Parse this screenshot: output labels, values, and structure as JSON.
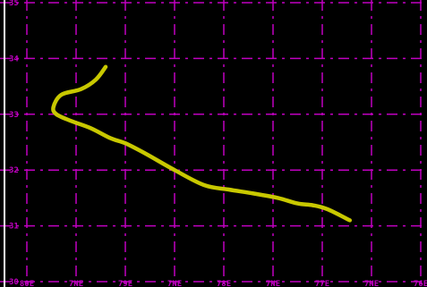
{
  "chart_data": {
    "type": "line",
    "title": "",
    "xlabel": "",
    "ylabel": "",
    "xlim": [
      -80,
      -76
    ],
    "ylim": [
      30,
      35
    ],
    "grid": true,
    "x_ticks": [
      {
        "value": -80,
        "label": "80E"
      },
      {
        "value": -79.5,
        "label": "7NE"
      },
      {
        "value": -79,
        "label": "79E"
      },
      {
        "value": -78.5,
        "label": "7NE"
      },
      {
        "value": -78,
        "label": "78E"
      },
      {
        "value": -77.5,
        "label": "7NE"
      },
      {
        "value": -77,
        "label": "77E"
      },
      {
        "value": -76.5,
        "label": "7NE"
      },
      {
        "value": -76,
        "label": "76E"
      }
    ],
    "y_ticks": [
      {
        "value": 35,
        "label": "35"
      },
      {
        "value": 34,
        "label": "34"
      },
      {
        "value": 33,
        "label": "33"
      },
      {
        "value": 32,
        "label": "32"
      },
      {
        "value": 31,
        "label": "31"
      },
      {
        "value": 30,
        "label": "30"
      }
    ],
    "series": [
      {
        "x": [
          -76.72,
          -76.95,
          -77.1,
          -77.25,
          -77.45,
          -77.7,
          -77.95,
          -78.2,
          -78.5,
          -78.8,
          -79.0,
          -79.15,
          -79.35,
          -79.55,
          -79.7,
          -79.73,
          -79.65,
          -79.45,
          -79.3,
          -79.2
        ],
        "y": [
          31.1,
          31.3,
          31.37,
          31.4,
          31.5,
          31.58,
          31.65,
          31.73,
          32.0,
          32.3,
          32.48,
          32.57,
          32.75,
          32.88,
          33.0,
          33.13,
          33.35,
          33.45,
          33.62,
          33.85
        ]
      }
    ]
  },
  "colors": {
    "background": "#000000",
    "grid": "#c000c0",
    "axis": "#ffffff",
    "tick_label": "#c000c0",
    "track": "#c8c800"
  }
}
